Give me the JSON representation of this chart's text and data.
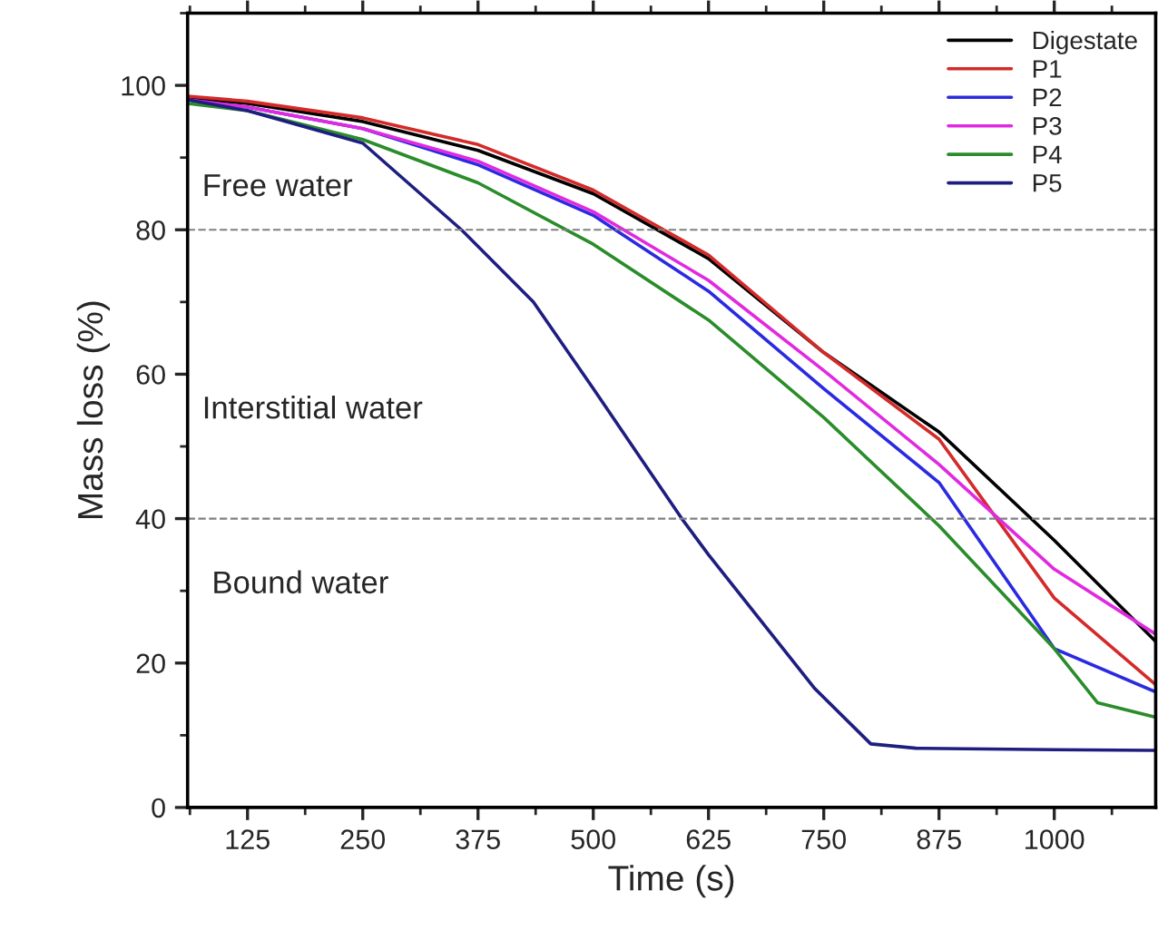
{
  "chart_data": {
    "type": "line",
    "xlabel": "Time (s)",
    "ylabel": "Mass loss (%)",
    "xlim": [
      60,
      1110
    ],
    "ylim": [
      0,
      110
    ],
    "xticks": [
      125,
      250,
      375,
      500,
      625,
      750,
      875,
      1000
    ],
    "yticks": [
      0,
      20,
      40,
      60,
      80,
      100
    ],
    "grid": false,
    "legend": "top right",
    "line_style": "solid",
    "ref_lines": [
      {
        "axis": "y",
        "value": 80,
        "color": "#808080",
        "line_style": "dashed"
      },
      {
        "axis": "y",
        "value": 40,
        "color": "#808080",
        "line_style": "dashed"
      }
    ],
    "annotations": [
      "Free water",
      "Interstitial water",
      "Bound water"
    ],
    "series": [
      {
        "name": "Digestate",
        "color": "#000000",
        "x": [
          60,
          125,
          250,
          375,
          500,
          625,
          750,
          875,
          1000,
          1110
        ],
        "values": [
          98.3,
          97.5,
          95,
          91,
          85,
          76,
          63,
          52,
          37,
          23
        ]
      },
      {
        "name": "P1",
        "color": "#d42a2a",
        "x": [
          60,
          125,
          250,
          375,
          500,
          625,
          750,
          875,
          1000,
          1110
        ],
        "values": [
          98.5,
          97.8,
          95.5,
          91.8,
          85.5,
          76.5,
          63,
          51,
          29,
          17
        ]
      },
      {
        "name": "P2",
        "color": "#2a2ae0",
        "x": [
          60,
          125,
          250,
          375,
          500,
          625,
          750,
          875,
          1000,
          1110
        ],
        "values": [
          98,
          97,
          94,
          89,
          82,
          71.5,
          58,
          45,
          22,
          16
        ]
      },
      {
        "name": "P3",
        "color": "#e02ae0",
        "x": [
          60,
          125,
          250,
          375,
          500,
          625,
          750,
          875,
          1000,
          1110
        ],
        "values": [
          98,
          97,
          94,
          89.5,
          82.5,
          73,
          60.5,
          47.5,
          33,
          24
        ]
      },
      {
        "name": "P4",
        "color": "#2a8c2a",
        "x": [
          60,
          125,
          250,
          375,
          500,
          625,
          750,
          875,
          1000,
          1047,
          1110
        ],
        "values": [
          97.5,
          96.5,
          92.5,
          86.5,
          78,
          67.5,
          54,
          39,
          22,
          14.5,
          12.5
        ]
      },
      {
        "name": "P5",
        "color": "#1e1e80",
        "x": [
          60,
          125,
          250,
          357,
          435,
          500,
          596,
          625,
          740,
          801,
          850,
          1000,
          1110
        ],
        "values": [
          98,
          96.5,
          92,
          80,
          70,
          58,
          40,
          35,
          16.5,
          8.8,
          8.2,
          8,
          7.9
        ]
      }
    ]
  }
}
